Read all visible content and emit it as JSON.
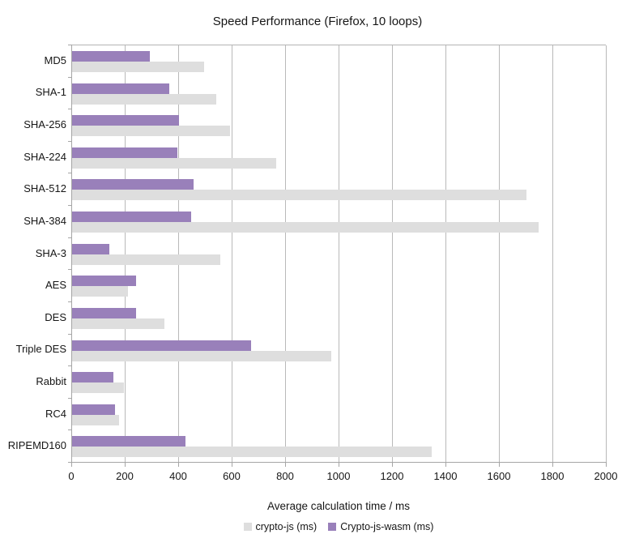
{
  "chart_data": {
    "type": "bar",
    "orientation": "horizontal",
    "title": "Speed Performance (Firefox, 10 loops)",
    "xlabel": "Average calculation time / ms",
    "ylabel": "",
    "xlim": [
      0,
      2000
    ],
    "xticks": [
      0,
      200,
      400,
      600,
      800,
      1000,
      1200,
      1400,
      1600,
      1800,
      2000
    ],
    "grid": true,
    "legend_position": "bottom",
    "categories": [
      "MD5",
      "SHA-1",
      "SHA-256",
      "SHA-224",
      "SHA-512",
      "SHA-384",
      "SHA-3",
      "AES",
      "DES",
      "Triple DES",
      "Rabbit",
      "RC4",
      "RIPEMD160"
    ],
    "series": [
      {
        "name": "crypto-js (ms)",
        "color": "#dedede",
        "values": [
          495,
          540,
          590,
          765,
          1700,
          1745,
          555,
          210,
          345,
          970,
          195,
          175,
          1345
        ]
      },
      {
        "name": "Crypto-js-wasm (ms)",
        "color": "#9980ba",
        "values": [
          290,
          365,
          400,
          395,
          455,
          445,
          140,
          240,
          240,
          670,
          155,
          160,
          425
        ]
      }
    ]
  }
}
